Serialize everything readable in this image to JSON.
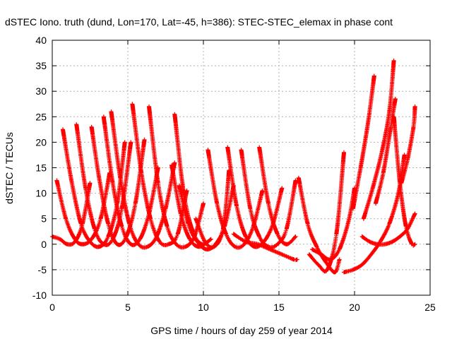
{
  "chart_data": {
    "type": "scatter",
    "title": "dSTEC Iono. truth (dund, Lon=170, Lat=-45, h=386): STEC-STEC_elemax in phase cont",
    "xlabel": "GPS time / hours of day 259 of year 2014",
    "ylabel": "dSTEC  / TECUs",
    "xlim": [
      0,
      25
    ],
    "ylim": [
      -10,
      40
    ],
    "xticks": [
      0,
      5,
      10,
      15,
      20,
      25
    ],
    "yticks": [
      -10,
      -5,
      0,
      5,
      10,
      15,
      20,
      25,
      30,
      35,
      40
    ],
    "grid": true,
    "legend": "none",
    "marker": "+",
    "color": "#ff0000",
    "series": [
      {
        "x": [
          0.0,
          0.5,
          1.0,
          1.5,
          2.0,
          2.5
        ],
        "y": [
          1.5,
          1.0,
          0.0,
          0.5,
          4.0,
          12.0
        ]
      },
      {
        "x": [
          0.3,
          0.9,
          1.5,
          2.0,
          2.6,
          3.2,
          3.8
        ],
        "y": [
          12.5,
          5.0,
          1.0,
          0.0,
          1.0,
          5.0,
          14.0
        ]
      },
      {
        "x": [
          0.7,
          1.3,
          1.9,
          2.5,
          3.1,
          3.7,
          4.3,
          4.8
        ],
        "y": [
          22.5,
          12.0,
          4.0,
          0.5,
          -0.5,
          1.5,
          8.0,
          20.0
        ]
      },
      {
        "x": [
          1.6,
          2.2,
          2.8,
          3.4,
          4.0,
          4.6,
          5.2
        ],
        "y": [
          23.5,
          11.0,
          3.0,
          0.0,
          1.0,
          7.0,
          20.0
        ]
      },
      {
        "x": [
          2.6,
          3.1,
          3.7,
          4.3,
          4.9,
          5.5,
          6.1
        ],
        "y": [
          23.0,
          13.0,
          4.0,
          0.0,
          1.5,
          8.0,
          20.5
        ]
      },
      {
        "x": [
          3.4,
          4.0,
          4.6,
          5.2,
          5.8,
          6.4,
          7.0
        ],
        "y": [
          25.0,
          12.0,
          3.5,
          0.0,
          1.0,
          6.0,
          15.0
        ]
      },
      {
        "x": [
          3.9,
          4.5,
          5.1,
          5.7,
          6.3,
          6.9,
          7.5,
          8.1
        ],
        "y": [
          26.0,
          13.0,
          4.0,
          0.0,
          -0.5,
          1.5,
          7.0,
          16.0
        ]
      },
      {
        "x": [
          5.3,
          5.9,
          6.5,
          7.1,
          7.7,
          8.3,
          8.9
        ],
        "y": [
          27.5,
          14.0,
          5.0,
          0.5,
          0.0,
          2.0,
          10.5
        ]
      },
      {
        "x": [
          6.4,
          7.0,
          7.6,
          8.2,
          8.8,
          9.4,
          10.0
        ],
        "y": [
          27.0,
          12.0,
          3.5,
          0.0,
          -0.5,
          1.5,
          8.0
        ]
      },
      {
        "x": [
          8.1,
          8.7,
          9.3,
          9.9,
          10.5
        ],
        "y": [
          25.5,
          10.0,
          2.5,
          0.0,
          1.0
        ]
      },
      {
        "x": [
          7.9,
          8.5,
          9.1,
          9.7,
          10.3
        ],
        "y": [
          15.5,
          6.0,
          1.0,
          -0.5,
          0.5
        ]
      },
      {
        "x": [
          8.4,
          9.0,
          9.6,
          10.2,
          10.8,
          11.4,
          12.0
        ],
        "y": [
          11.5,
          4.0,
          0.5,
          -1.0,
          0.0,
          3.5,
          11.5
        ]
      },
      {
        "x": [
          10.3,
          10.9,
          11.5,
          12.1,
          12.7,
          13.3,
          13.9
        ],
        "y": [
          18.5,
          8.0,
          2.0,
          -0.5,
          0.0,
          3.5,
          10.5
        ]
      },
      {
        "x": [
          9.5,
          10.1,
          10.7,
          11.3,
          11.7
        ],
        "y": [
          5.0,
          0.5,
          -0.5,
          3.0,
          14.5
        ]
      },
      {
        "x": [
          11.6,
          12.2,
          12.8,
          13.4,
          14.0,
          14.6,
          15.2
        ],
        "y": [
          19.0,
          7.5,
          1.5,
          -0.5,
          0.5,
          4.0,
          11.0
        ]
      },
      {
        "x": [
          12.5,
          13.1,
          13.7,
          14.3,
          14.9,
          15.5,
          16.1
        ],
        "y": [
          18.5,
          7.0,
          1.5,
          -0.5,
          0.0,
          3.0,
          12.5
        ]
      },
      {
        "x": [
          13.7,
          14.3,
          14.9,
          15.5,
          16.1
        ],
        "y": [
          19.0,
          8.0,
          2.0,
          0.0,
          1.5
        ]
      },
      {
        "x": [
          12.0,
          12.8,
          13.6,
          14.4,
          15.2,
          16.0,
          16.2
        ],
        "y": [
          2.0,
          0.5,
          0.0,
          -1.0,
          -2.0,
          -3.0,
          -3.0
        ]
      },
      {
        "x": [
          16.3,
          16.9,
          17.5,
          18.1,
          18.7,
          19.0
        ],
        "y": [
          13.0,
          4.0,
          -0.5,
          -3.5,
          -5.5,
          -3.0
        ]
      },
      {
        "x": [
          17.0,
          17.6,
          18.2,
          18.8,
          19.3
        ],
        "y": [
          -2.0,
          -4.0,
          -5.0,
          2.0,
          18.0
        ]
      },
      {
        "x": [
          17.2,
          17.8,
          18.4,
          19.0,
          19.6,
          20.0
        ],
        "y": [
          -1.0,
          -2.0,
          -3.0,
          -1.0,
          4.5,
          11.0
        ]
      },
      {
        "x": [
          19.3,
          19.9,
          20.5,
          21.1,
          21.7,
          22.3,
          22.9,
          23.3
        ],
        "y": [
          -5.5,
          -5.0,
          -4.0,
          -2.0,
          0.5,
          4.0,
          10.0,
          17.5
        ]
      },
      {
        "x": [
          19.9,
          20.4,
          20.9,
          21.3
        ],
        "y": [
          7.0,
          15.0,
          24.0,
          33.0
        ]
      },
      {
        "x": [
          20.6,
          21.2,
          21.8,
          22.3,
          22.6
        ],
        "y": [
          5.0,
          11.0,
          18.0,
          26.0,
          36.0
        ]
      },
      {
        "x": [
          21.4,
          21.9,
          22.4,
          22.7
        ],
        "y": [
          8.0,
          14.0,
          23.0,
          28.5
        ]
      },
      {
        "x": [
          20.5,
          21.0,
          21.5,
          22.0,
          22.5,
          23.0,
          23.5,
          24.0
        ],
        "y": [
          1.5,
          0.5,
          0.0,
          0.0,
          0.5,
          1.5,
          3.0,
          6.0
        ]
      },
      {
        "x": [
          22.6,
          23.0,
          23.4,
          23.8,
          24.0
        ],
        "y": [
          25.0,
          12.0,
          3.5,
          0.0,
          0.0
        ]
      },
      {
        "x": [
          23.1,
          23.5,
          23.9,
          24.0
        ],
        "y": [
          12.0,
          16.5,
          23.0,
          27.0
        ]
      }
    ]
  }
}
